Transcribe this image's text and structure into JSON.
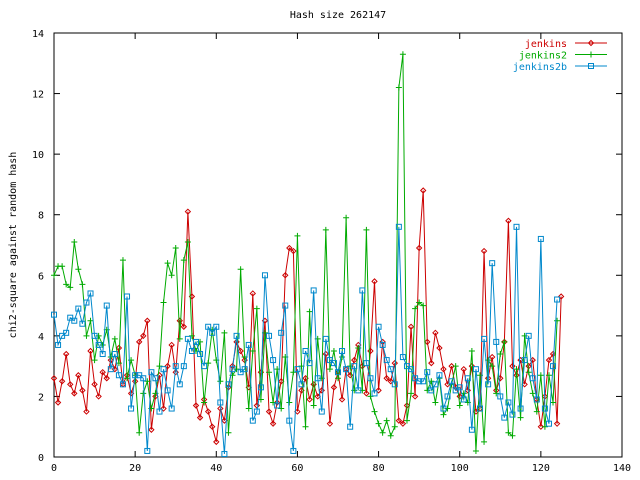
{
  "chart_data": {
    "type": "line",
    "title": "Hash size 262147",
    "xlabel": "",
    "ylabel": "chi2-square against random hash",
    "xlim": [
      0,
      140
    ],
    "ylim": [
      0,
      14
    ],
    "xticks": [
      0,
      20,
      40,
      60,
      80,
      100,
      120,
      140
    ],
    "yticks": [
      0,
      2,
      4,
      6,
      8,
      10,
      12,
      14
    ],
    "grid": false,
    "legend_position": "top-right",
    "series": [
      {
        "name": "jenkins",
        "color": "#cc0000",
        "marker": "diamond",
        "values": [
          2.6,
          1.8,
          2.5,
          3.4,
          2.4,
          2.1,
          2.7,
          2.2,
          1.5,
          3.5,
          2.4,
          2.0,
          2.8,
          2.6,
          3.2,
          2.9,
          3.6,
          2.4,
          2.7,
          2.1,
          2.5,
          3.8,
          4.0,
          4.5,
          0.9,
          2.0,
          2.7,
          1.6,
          3.0,
          3.7,
          2.8,
          4.5,
          4.3,
          8.1,
          5.3,
          1.7,
          1.3,
          1.9,
          1.5,
          1.0,
          0.5,
          1.6,
          1.2,
          2.3,
          3.0,
          3.8,
          3.5,
          3.2,
          2.3,
          5.4,
          1.7,
          2.8,
          4.5,
          1.5,
          1.1,
          1.8,
          2.5,
          6.0,
          6.9,
          6.8,
          1.5,
          2.2,
          2.6,
          1.9,
          2.4,
          2.0,
          2.2,
          3.4,
          1.1,
          2.3,
          2.8,
          1.9,
          2.9,
          2.7,
          3.2,
          3.7,
          3.0,
          2.1,
          3.5,
          5.8,
          2.2,
          3.8,
          2.6,
          2.5,
          3.1,
          1.2,
          1.1,
          1.7,
          4.3,
          2.0,
          6.9,
          8.8,
          3.8,
          3.1,
          4.1,
          3.6,
          2.9,
          2.4,
          3.0,
          2.3,
          2.0,
          2.9,
          2.2,
          3.0,
          1.5,
          1.6,
          6.8,
          2.6,
          3.3,
          2.2,
          2.6,
          3.8,
          7.8,
          3.0,
          2.7,
          3.2,
          2.4,
          3.0,
          3.2,
          1.9,
          1.0,
          2.0,
          3.2,
          3.4,
          1.1,
          5.3
        ]
      },
      {
        "name": "jenkins2",
        "color": "#00aa00",
        "marker": "plus",
        "values": [
          6.0,
          6.3,
          6.3,
          5.7,
          5.6,
          7.1,
          6.2,
          5.7,
          4.0,
          4.5,
          3.2,
          4.0,
          3.7,
          4.2,
          3.3,
          3.9,
          3.1,
          6.5,
          2.6,
          3.2,
          2.7,
          0.8,
          2.1,
          2.5,
          1.6,
          2.1,
          3.0,
          5.1,
          6.4,
          6.0,
          6.9,
          3.9,
          6.5,
          7.1,
          4.0,
          3.5,
          3.8,
          1.8,
          3.1,
          4.2,
          3.2,
          2.5,
          4.1,
          0.8,
          2.7,
          2.9,
          6.2,
          3.3,
          1.6,
          3.5,
          4.9,
          1.9,
          4.1,
          2.8,
          1.8,
          2.9,
          1.6,
          3.3,
          1.8,
          2.8,
          7.3,
          3.0,
          1.0,
          4.8,
          1.7,
          3.9,
          2.6,
          7.5,
          2.9,
          3.5,
          2.6,
          3.3,
          7.9,
          3.0,
          2.2,
          3.6,
          2.2,
          7.5,
          2.0,
          1.5,
          1.1,
          0.8,
          1.2,
          0.7,
          1.0,
          12.2,
          13.3,
          1.2,
          2.1,
          4.9,
          5.1,
          5.0,
          2.2,
          2.5,
          1.8,
          2.6,
          1.4,
          1.6,
          2.4,
          3.0,
          1.7,
          2.1,
          1.8,
          3.5,
          0.2,
          2.7,
          0.5,
          3.2,
          3.0,
          2.1,
          3.4,
          3.8,
          0.8,
          0.7,
          2.9,
          1.3,
          4.0,
          2.8,
          2.1,
          1.5,
          2.7,
          1.0,
          2.7,
          1.8,
          4.5
        ]
      },
      {
        "name": "jenkins2b",
        "color": "#0088cc",
        "marker": "square",
        "values": [
          4.7,
          3.7,
          4.0,
          4.1,
          4.6,
          4.5,
          4.9,
          4.4,
          5.1,
          5.4,
          4.0,
          3.7,
          3.4,
          5.0,
          2.9,
          3.4,
          2.7,
          2.4,
          5.3,
          1.6,
          2.7,
          2.7,
          2.6,
          0.2,
          2.8,
          2.6,
          1.5,
          2.9,
          2.2,
          1.6,
          3.0,
          2.4,
          3.0,
          3.9,
          3.5,
          3.8,
          3.4,
          3.0,
          4.3,
          4.1,
          4.3,
          1.8,
          0.1,
          2.4,
          2.9,
          4.0,
          2.8,
          2.9,
          3.7,
          1.2,
          1.5,
          2.3,
          6.0,
          4.0,
          3.2,
          1.7,
          4.1,
          5.0,
          1.2,
          0.2,
          2.9,
          2.4,
          3.5,
          3.1,
          5.5,
          2.6,
          1.5,
          3.9,
          3.2,
          3.1,
          2.8,
          3.5,
          2.9,
          1.0,
          3.0,
          2.2,
          5.5,
          3.1,
          2.6,
          2.1,
          4.3,
          3.7,
          3.2,
          2.9,
          2.4,
          7.6,
          3.3,
          3.0,
          2.9,
          2.6,
          2.5,
          2.5,
          2.8,
          2.2,
          2.4,
          2.7,
          1.6,
          2.0,
          2.5,
          2.2,
          2.3,
          1.9,
          2.6,
          0.9,
          2.9,
          1.6,
          3.9,
          2.4,
          6.4,
          3.8,
          2.0,
          1.3,
          1.8,
          1.4,
          7.6,
          1.6,
          3.2,
          4.0,
          2.6,
          1.9,
          7.2,
          1.6,
          1.1,
          3.0,
          5.2
        ]
      }
    ]
  }
}
